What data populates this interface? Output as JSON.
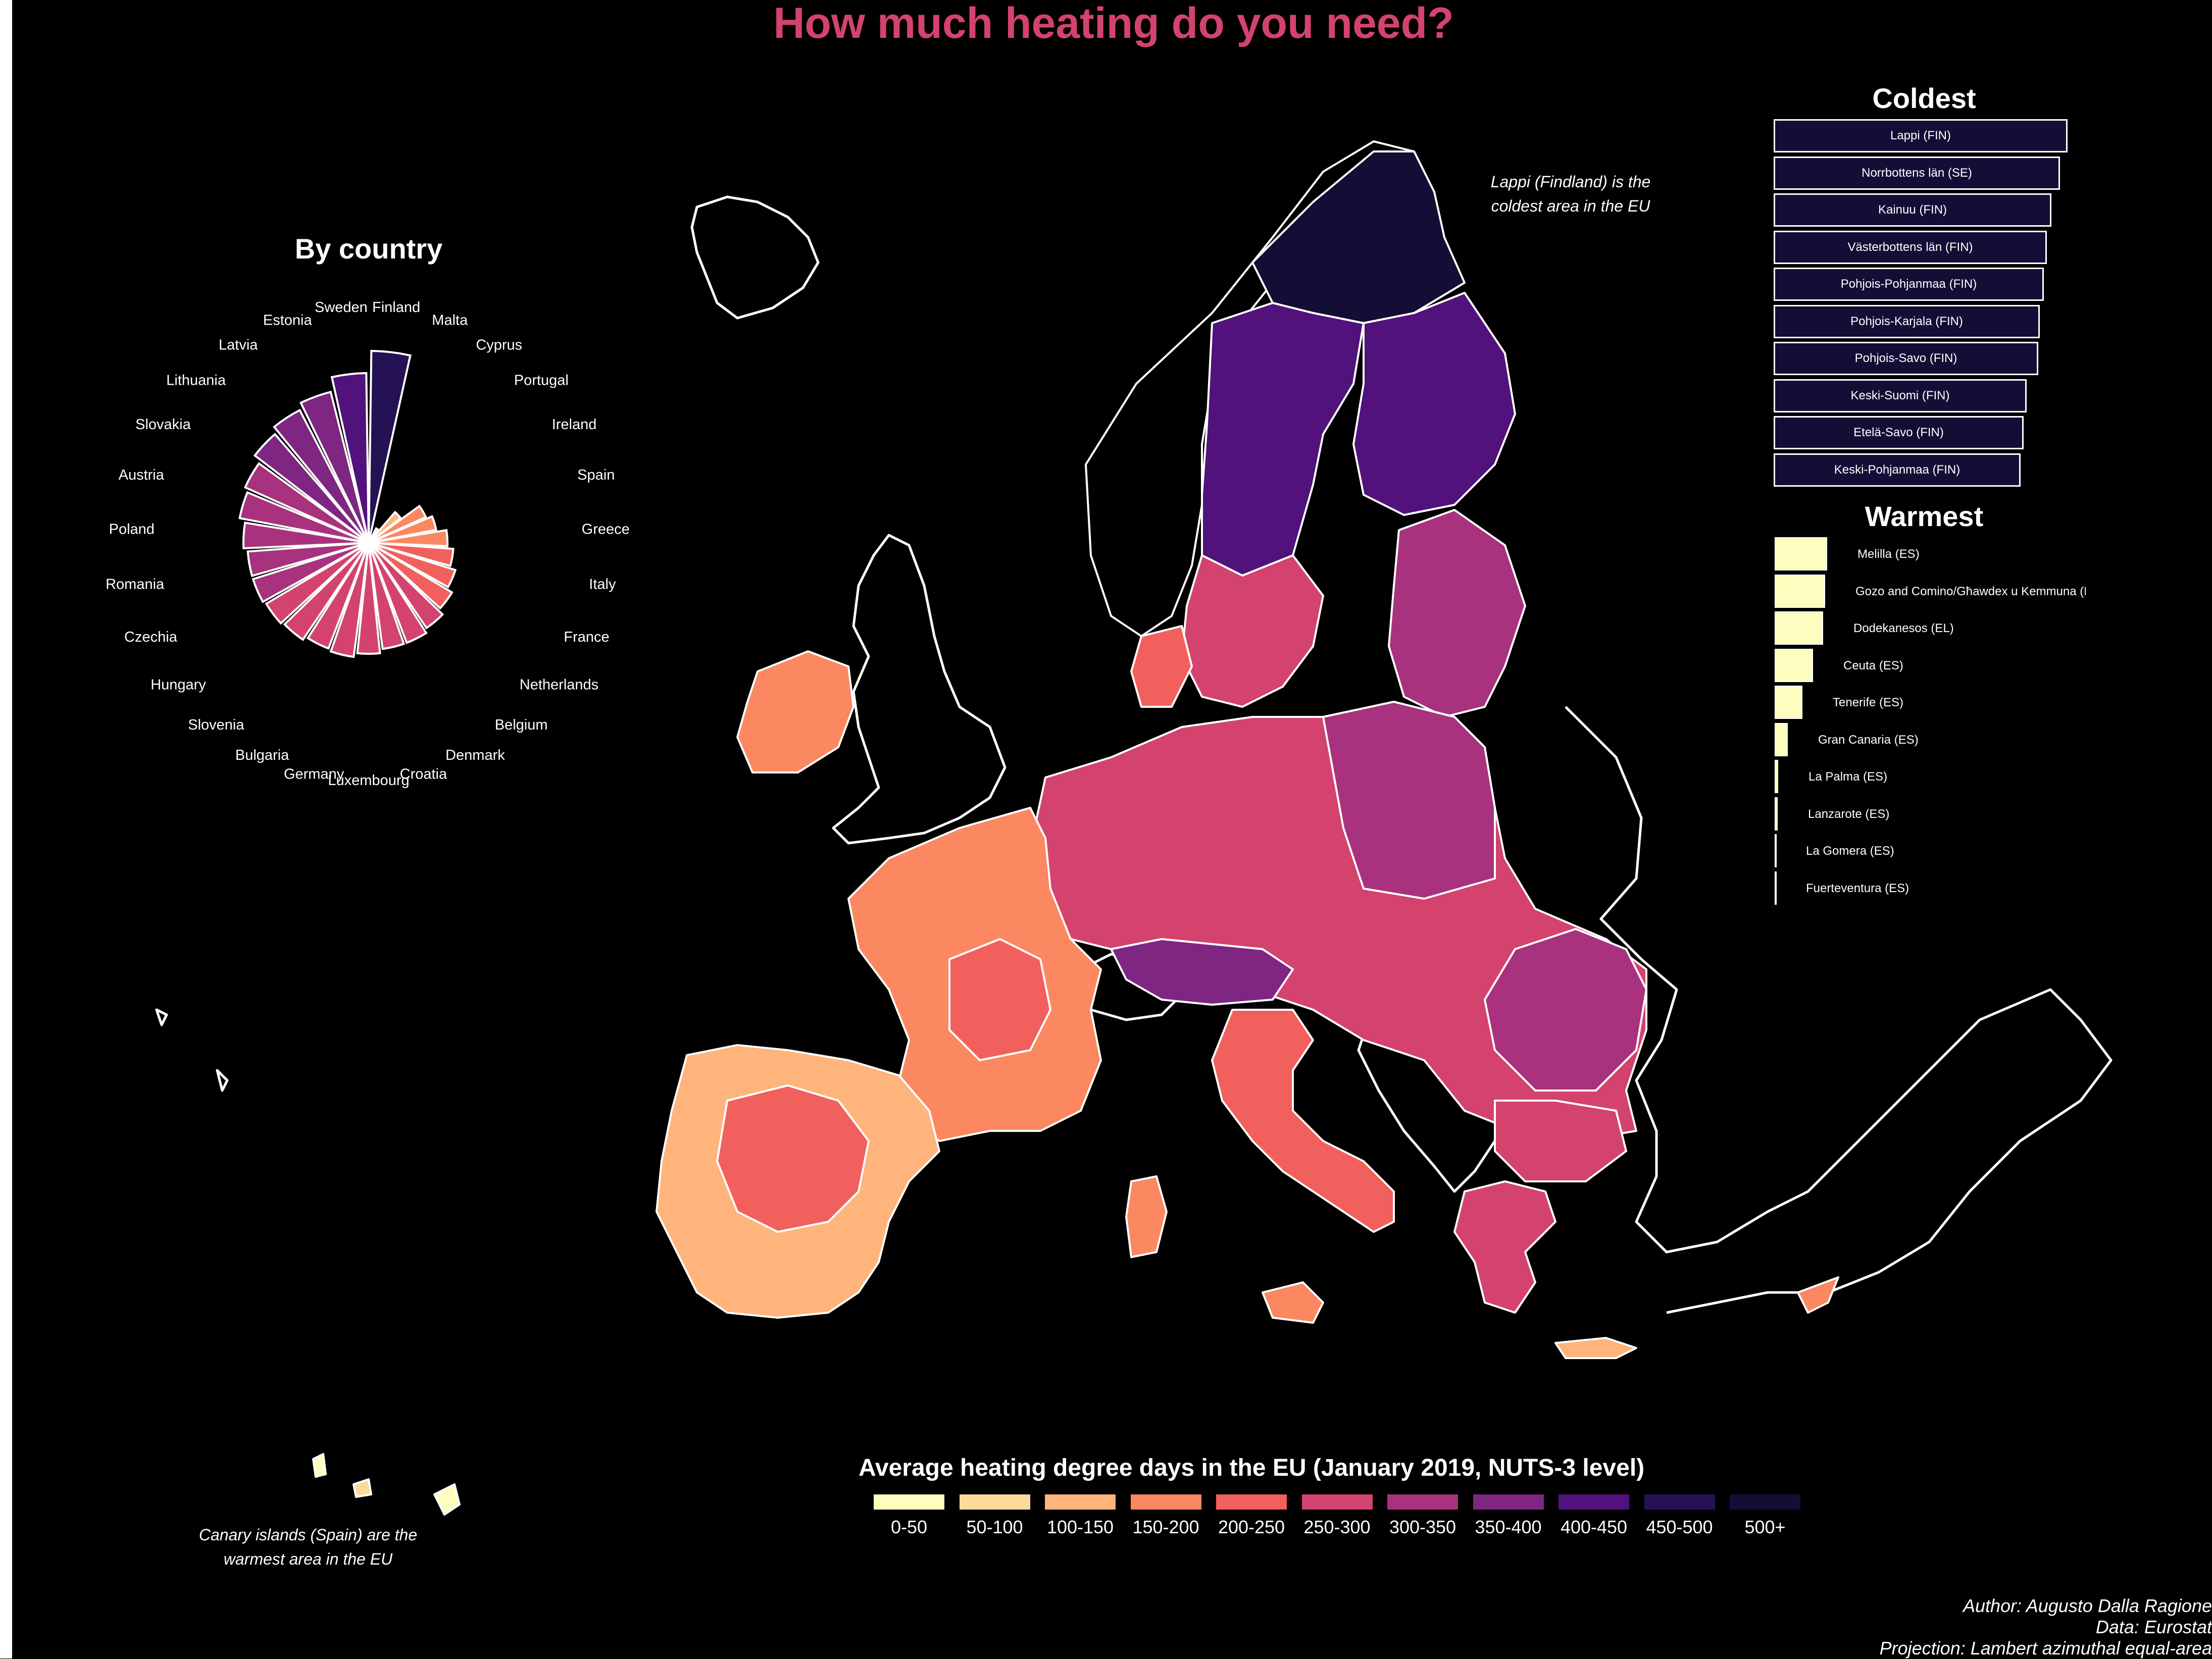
{
  "title": "How much heating do you need?",
  "colors": {
    "title": "#D3436E",
    "background": "#000000",
    "scale": [
      "#FCFDBF",
      "#FDDA9C",
      "#FEB47B",
      "#FB8861",
      "#F1605D",
      "#D3436E",
      "#A8327D",
      "#7F2582",
      "#51127C",
      "#251255",
      "#140E36"
    ]
  },
  "by_country": {
    "title": "By country",
    "countries": [
      "Finland",
      "Malta",
      "Cyprus",
      "Portugal",
      "Ireland",
      "Spain",
      "Greece",
      "Italy",
      "France",
      "Netherlands",
      "Belgium",
      "Denmark",
      "Croatia",
      "Luxembourg",
      "Germany",
      "Bulgaria",
      "Slovenia",
      "Hungary",
      "Czechia",
      "Romania",
      "Poland",
      "Austria",
      "Slovakia",
      "Lithuania",
      "Latvia",
      "Estonia",
      "Sweden"
    ]
  },
  "chart_data": {
    "type": "bar",
    "subtype": "polar",
    "title": "By country",
    "categories": [
      "Finland",
      "Malta",
      "Cyprus",
      "Portugal",
      "Ireland",
      "Spain",
      "Greece",
      "Italy",
      "France",
      "Netherlands",
      "Belgium",
      "Denmark",
      "Croatia",
      "Luxembourg",
      "Germany",
      "Bulgaria",
      "Slovenia",
      "Hungary",
      "Czechia",
      "Romania",
      "Poland",
      "Austria",
      "Slovakia",
      "Lithuania",
      "Latvia",
      "Estonia",
      "Sweden"
    ],
    "values": [
      475,
      0,
      40,
      100,
      155,
      170,
      195,
      210,
      225,
      240,
      255,
      265,
      265,
      275,
      285,
      280,
      290,
      295,
      300,
      300,
      310,
      325,
      335,
      355,
      370,
      385,
      420
    ]
  },
  "coldest": {
    "title": "Coldest",
    "items": [
      {
        "label": "Lappi (FIN)",
        "value": 1.0
      },
      {
        "label": "Norrbottens län (SE)",
        "value": 0.975
      },
      {
        "label": "Kainuu (FIN)",
        "value": 0.945
      },
      {
        "label": "Västerbottens län (FIN)",
        "value": 0.93
      },
      {
        "label": "Pohjois-Pohjanmaa (FIN)",
        "value": 0.92
      },
      {
        "label": "Pohjois-Karjala (FIN)",
        "value": 0.905
      },
      {
        "label": "Pohjois-Savo (FIN)",
        "value": 0.9
      },
      {
        "label": "Keski-Suomi (FIN)",
        "value": 0.86
      },
      {
        "label": "Etelä-Savo (FIN)",
        "value": 0.85
      },
      {
        "label": "Keski-Pohjanmaa (FIN)",
        "value": 0.84
      }
    ]
  },
  "warmest": {
    "title": "Warmest",
    "items": [
      {
        "label": "Melilla (ES)",
        "value": 1.0
      },
      {
        "label": "Gozo and Comino/Għawdex u Kemmuna (MT)",
        "value": 0.96
      },
      {
        "label": "Dodekanesos (EL)",
        "value": 0.92
      },
      {
        "label": "Ceuta (ES)",
        "value": 0.73
      },
      {
        "label": "Tenerife (ES)",
        "value": 0.53
      },
      {
        "label": "Gran Canaria (ES)",
        "value": 0.25
      },
      {
        "label": "La Palma (ES)",
        "value": 0.07
      },
      {
        "label": "Lanzarote (ES)",
        "value": 0.06
      },
      {
        "label": "La Gomera (ES)",
        "value": 0.02
      },
      {
        "label": "Fuerteventura (ES)",
        "value": 0.01
      }
    ]
  },
  "notes": {
    "lappi_line1": "Lappi (Findland) is the",
    "lappi_line2": "coldest area in the EU",
    "canary_line1": "Canary islands (Spain) are the",
    "canary_line2": "warmest area in the EU"
  },
  "legend": {
    "title": "Average heating degree days in the EU (January 2019, NUTS-3 level)",
    "labels": [
      "0-50",
      "50-100",
      "100-150",
      "150-200",
      "200-250",
      "250-300",
      "300-350",
      "350-400",
      "400-450",
      "450-500",
      "500+"
    ]
  },
  "credits": {
    "author": "Author: Augusto Dalla Ragione",
    "data": "Data: Eurostat",
    "projection": "Projection: Lambert azimuthal equal-area"
  }
}
